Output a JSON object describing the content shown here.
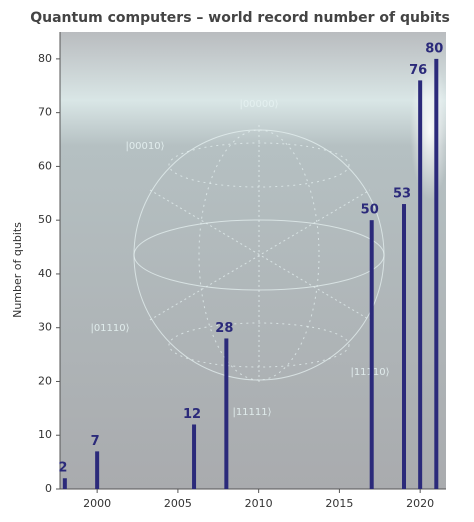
{
  "chart_data": {
    "type": "bar",
    "title": "Quantum computers – world record number of qubits",
    "ylabel": "Number of qubits",
    "x": [
      1998,
      2000,
      2006,
      2008,
      2017,
      2019,
      2020,
      2021
    ],
    "values": [
      2,
      7,
      12,
      28,
      50,
      53,
      76,
      80
    ],
    "color": "#2b2a7a",
    "xlim": [
      1997.7,
      2021.6
    ],
    "xticks": [
      2000,
      2005,
      2010,
      2015,
      2020
    ],
    "ylim": [
      0,
      85
    ],
    "yticks": [
      0,
      10,
      20,
      30,
      40,
      50,
      60,
      70,
      80
    ],
    "annotations": [
      "|00000⟩",
      "|00010⟩",
      "|01110⟩",
      "|11110⟩",
      "|11111⟩"
    ]
  }
}
